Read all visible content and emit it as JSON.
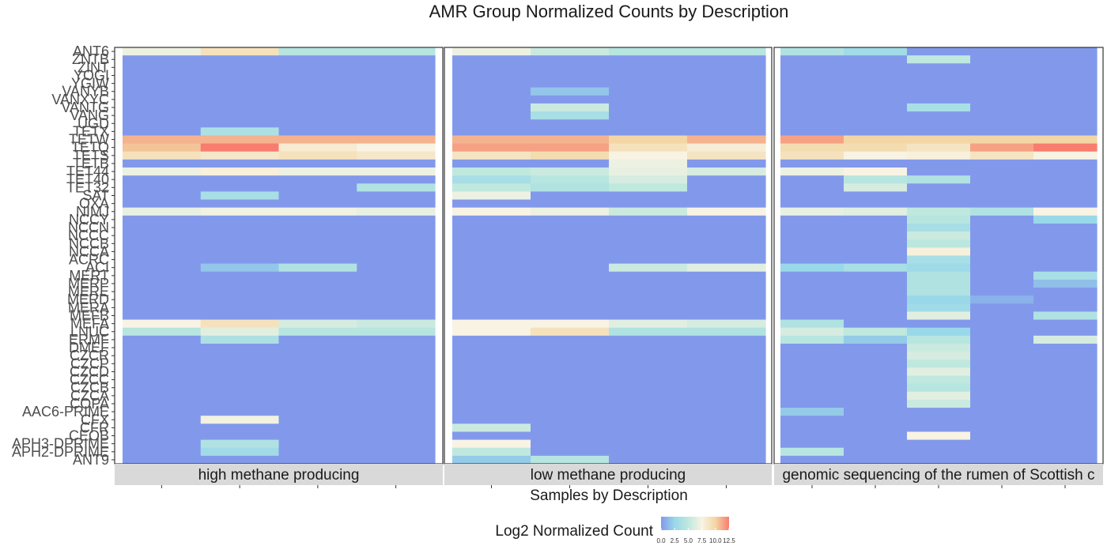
{
  "chart_data": {
    "type": "heatmap",
    "title": "AMR Group Normalized Counts by Description",
    "xlabel": "Samples by Description",
    "ylabel": "",
    "y_categories": [
      "ANT6",
      "ZNTB",
      "ZINT",
      "YOGI",
      "YGIW",
      "VANYB",
      "VANXYC",
      "VANTG",
      "VANG",
      "UGD",
      "TETX",
      "TETW",
      "TETQ",
      "TETS",
      "TETB",
      "TET44",
      "TET40",
      "TET32",
      "SAT",
      "OXA",
      "NIMJ",
      "NCCY",
      "NCCN",
      "NCCC",
      "NCCB",
      "NCCA",
      "ACRC",
      "ACI",
      "MERT",
      "MERP",
      "MERE",
      "MERD",
      "MERA",
      "MEFB",
      "MEFA",
      "LNUC",
      "ERMF",
      "DMEF",
      "CZCR",
      "CZCP",
      "CZCD",
      "CZCC",
      "CZCB",
      "CZCA",
      "COPA",
      "AAC6-PRIME",
      "CFX",
      "CFR",
      "CEOB",
      "APH3-DPRIME",
      "APH2-DPRIME",
      "ANT9"
    ],
    "color_scale": {
      "stops": [
        {
          "v": 0.0,
          "color": "#8299eb"
        },
        {
          "v": 2.5,
          "color": "#99d8e9"
        },
        {
          "v": 5.0,
          "color": "#bfe8de"
        },
        {
          "v": 7.5,
          "color": "#f8f3e3"
        },
        {
          "v": 10.0,
          "color": "#f3d6a4"
        },
        {
          "v": 12.5,
          "color": "#f87d6f"
        }
      ]
    },
    "legend": {
      "title": "Log2 Normalized Count",
      "position": "bottom",
      "ticks": [
        "0.0",
        "2.5",
        "5.0",
        "7.5",
        "10.0",
        "12.5"
      ]
    },
    "panels": [
      {
        "label": "high methane producing",
        "n_samples": 4,
        "rows": {
          "ANT6": [
            7.0,
            9.0,
            4.5,
            4.5
          ],
          "TETX": [
            0.0,
            3.8,
            0.0,
            0.0
          ],
          "TETW": [
            11.0,
            11.0,
            11.0,
            11.0
          ],
          "TETQ": [
            10.5,
            12.5,
            8.2,
            7.5
          ],
          "TETS": [
            9.0,
            8.5,
            9.0,
            8.5
          ],
          "TET44": [
            7.0,
            7.8,
            7.0,
            7.0
          ],
          "TET32": [
            0.0,
            0.0,
            0.0,
            4.0
          ],
          "SAT": [
            0.0,
            3.5,
            0.0,
            0.0
          ],
          "NIMJ": [
            6.8,
            7.2,
            7.2,
            6.8
          ],
          "ACI": [
            0.0,
            1.8,
            4.0,
            0.0
          ],
          "MEFA": [
            7.5,
            9.0,
            6.0,
            5.5
          ],
          "LNUC": [
            4.5,
            6.5,
            4.5,
            4.5
          ],
          "ERMF": [
            0.0,
            3.8,
            0.0,
            0.0
          ],
          "CFX": [
            0.0,
            7.2,
            0.0,
            0.0
          ],
          "APH3-DPRIME": [
            0.0,
            4.0,
            0.0,
            0.0
          ],
          "APH2-DPRIME": [
            0.0,
            3.0,
            0.0,
            0.0
          ]
        }
      },
      {
        "label": "low methane producing",
        "n_samples": 4,
        "rows": {
          "ANT6": [
            7.0,
            5.5,
            4.5,
            4.5
          ],
          "VANYB": [
            0.0,
            1.8,
            0.0,
            0.0
          ],
          "VANTG": [
            0.0,
            5.5,
            0.0,
            0.0
          ],
          "VANG": [
            0.0,
            3.5,
            0.0,
            0.0
          ],
          "TETW": [
            11.0,
            11.0,
            10.0,
            11.0
          ],
          "TETQ": [
            11.5,
            11.5,
            9.0,
            8.0
          ],
          "TETS": [
            8.8,
            9.5,
            7.5,
            8.8
          ],
          "TETB": [
            0.0,
            0.0,
            7.0,
            0.0
          ],
          "TET44": [
            5.0,
            5.5,
            6.8,
            6.0
          ],
          "TET40": [
            3.5,
            4.5,
            6.0,
            0.0
          ],
          "TET32": [
            5.0,
            4.0,
            5.0,
            0.0
          ],
          "SAT": [
            7.0,
            0.0,
            0.0,
            0.0
          ],
          "NIMJ": [
            7.5,
            7.0,
            5.5,
            7.5
          ],
          "ACI": [
            0.0,
            0.0,
            5.5,
            6.5
          ],
          "MEFA": [
            7.5,
            7.5,
            6.5,
            6.0
          ],
          "LNUC": [
            7.5,
            9.0,
            4.0,
            4.0
          ],
          "CFR": [
            5.5,
            0.0,
            0.0,
            0.0
          ],
          "APH3-DPRIME": [
            7.5,
            0.0,
            0.0,
            0.0
          ],
          "APH2-DPRIME": [
            5.0,
            0.0,
            0.0,
            0.0
          ],
          "ANT9": [
            2.0,
            4.5,
            0.0,
            0.0
          ]
        }
      },
      {
        "label": "genomic sequencing of the rumen of Scottish c",
        "n_samples": 5,
        "rows": {
          "ANT6": [
            4.0,
            3.0,
            0.0,
            0.0,
            0.0
          ],
          "ZNTB": [
            0.0,
            0.0,
            5.0,
            0.0,
            0.0
          ],
          "VANTG": [
            0.0,
            0.0,
            3.5,
            0.0,
            0.0
          ],
          "TETW": [
            11.5,
            10.0,
            10.0,
            10.0,
            10.0
          ],
          "TETQ": [
            9.5,
            9.5,
            8.8,
            11.5,
            12.5
          ],
          "TETS": [
            9.0,
            7.5,
            7.8,
            8.8,
            7.5
          ],
          "TET44": [
            7.0,
            7.5,
            0.0,
            0.0,
            0.0
          ],
          "TET40": [
            0.0,
            4.5,
            4.0,
            0.0,
            0.0
          ],
          "TET32": [
            0.0,
            6.0,
            0.0,
            0.0,
            0.0
          ],
          "NIMJ": [
            6.8,
            6.5,
            5.0,
            4.0,
            7.5
          ],
          "NCCY": [
            0.0,
            0.0,
            4.5,
            0.0,
            2.5
          ],
          "NCCN": [
            0.0,
            0.0,
            3.5,
            0.0,
            0.0
          ],
          "NCCC": [
            0.0,
            0.0,
            5.5,
            0.0,
            0.0
          ],
          "NCCB": [
            0.0,
            0.0,
            4.8,
            0.0,
            0.0
          ],
          "NCCA": [
            0.0,
            0.0,
            7.8,
            0.0,
            0.0
          ],
          "ACRC": [
            0.0,
            0.0,
            3.5,
            0.0,
            0.0
          ],
          "ACI": [
            2.5,
            3.5,
            2.8,
            0.0,
            0.0
          ],
          "MERT": [
            0.0,
            0.0,
            4.0,
            0.0,
            3.5
          ],
          "MERP": [
            0.0,
            0.0,
            4.0,
            0.0,
            1.5
          ],
          "MERE": [
            0.0,
            0.0,
            4.0,
            0.0,
            0.0
          ],
          "MERD": [
            0.0,
            0.0,
            2.5,
            1.0,
            0.0
          ],
          "MERA": [
            0.0,
            0.0,
            3.0,
            0.0,
            0.0
          ],
          "MEFB": [
            0.0,
            0.0,
            6.5,
            0.0,
            4.0
          ],
          "MEFA": [
            4.0,
            0.0,
            0.0,
            0.0,
            0.0
          ],
          "LNUC": [
            6.0,
            5.0,
            2.5,
            0.0,
            0.0
          ],
          "ERMF": [
            4.5,
            2.0,
            4.5,
            0.0,
            6.0
          ],
          "DMEF": [
            0.0,
            0.0,
            5.5,
            0.0,
            0.0
          ],
          "CZCR": [
            0.0,
            0.0,
            6.0,
            0.0,
            0.0
          ],
          "CZCP": [
            0.0,
            0.0,
            5.0,
            0.0,
            0.0
          ],
          "CZCD": [
            0.0,
            0.0,
            6.5,
            0.0,
            0.0
          ],
          "CZCC": [
            0.0,
            0.0,
            5.0,
            0.0,
            0.0
          ],
          "CZCB": [
            0.0,
            0.0,
            4.5,
            0.0,
            0.0
          ],
          "CZCA": [
            0.0,
            0.0,
            6.5,
            0.0,
            0.0
          ],
          "COPA": [
            0.0,
            0.0,
            5.5,
            0.0,
            0.0
          ],
          "AAC6-PRIME": [
            2.0,
            0.0,
            0.0,
            0.0,
            0.0
          ],
          "CEOB": [
            0.0,
            0.0,
            7.5,
            0.0,
            0.0
          ],
          "APH2-DPRIME": [
            4.5,
            0.0,
            0.0,
            0.0,
            0.0
          ]
        }
      }
    ]
  }
}
